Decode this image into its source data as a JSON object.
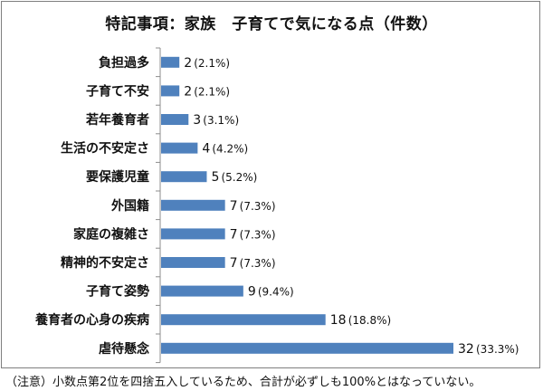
{
  "chart_data": {
    "type": "bar",
    "orientation": "horizontal",
    "title": "特記事項：家族　子育てで気になる点（件数）",
    "categories": [
      "負担過多",
      "子育て不安",
      "若年養育者",
      "生活の不安定さ",
      "要保護児童",
      "外国籍",
      "家庭の複雑さ",
      "精神的不安定さ",
      "子育て姿勢",
      "養育者の心身の疾病",
      "虐待懸念"
    ],
    "values": [
      2,
      2,
      3,
      4,
      5,
      7,
      7,
      7,
      9,
      18,
      32
    ],
    "percents": [
      "(2.1%)",
      "(2.1%)",
      "(3.1%)",
      "(4.2%)",
      "(5.2%)",
      "(7.3%)",
      "(7.3%)",
      "(7.3%)",
      "(9.4%)",
      "(18.8%)",
      "(33.3%)"
    ],
    "xlim": [
      0,
      32
    ],
    "grid": false,
    "bar_color": "#4f81bd"
  },
  "note": "（注意）小数点第2位を四捨五入しているため、合計が必ずしも100%とはなっていない。"
}
